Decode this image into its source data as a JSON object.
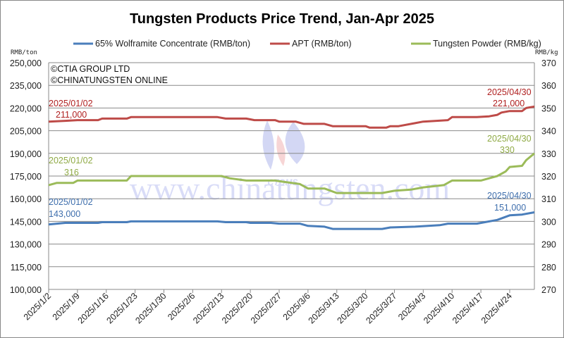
{
  "chart_data": {
    "type": "line",
    "title": "Tungsten Products Price Trend, Jan-Apr 2025",
    "copyright": [
      "©CTIA GROUP LTD",
      "©CHINATUNGSTEN ONLINE"
    ],
    "watermark": {
      "text": "www.chinatungsten.com",
      "logo": "CTOMS"
    },
    "grid": true,
    "legend_position": "top",
    "x_axis": {
      "type": "date",
      "range": [
        "2025-01-02",
        "2025-04-30"
      ],
      "tick_labels": [
        "2025/1/2",
        "2025/1/9",
        "2025/1/16",
        "2025/1/23",
        "2025/1/30",
        "2025/2/6",
        "2025/2/13",
        "2025/2/20",
        "2025/2/27",
        "2025/3/6",
        "2025/3/13",
        "2025/3/20",
        "2025/3/27",
        "2025/4/3",
        "2025/4/10",
        "2025/4/17",
        "2025/4/24"
      ]
    },
    "y_left": {
      "unit": "RMB/ton",
      "range": [
        100000,
        250000
      ],
      "ticks": [
        "100,000",
        "115,000",
        "130,000",
        "145,000",
        "160,000",
        "175,000",
        "190,000",
        "205,000",
        "220,000",
        "235,000",
        "250,000"
      ]
    },
    "y_right": {
      "unit": "RMB/kg",
      "range": [
        270,
        370
      ],
      "ticks": [
        "270",
        "280",
        "290",
        "300",
        "310",
        "320",
        "330",
        "340",
        "350",
        "360",
        "370"
      ]
    },
    "series": [
      {
        "name": "65% Wolframite Concentrate (RMB/ton)",
        "axis": "left",
        "color": "#4a7ebb",
        "points": [
          [
            "2025-01-02",
            143000
          ],
          [
            "2025-01-06",
            144000
          ],
          [
            "2025-01-14",
            144000
          ],
          [
            "2025-01-15",
            144500
          ],
          [
            "2025-01-21",
            144500
          ],
          [
            "2025-01-22",
            145000
          ],
          [
            "2025-02-12",
            145000
          ],
          [
            "2025-02-14",
            144500
          ],
          [
            "2025-02-19",
            144500
          ],
          [
            "2025-02-20",
            144000
          ],
          [
            "2025-02-25",
            144000
          ],
          [
            "2025-02-27",
            143500
          ],
          [
            "2025-03-04",
            143500
          ],
          [
            "2025-03-06",
            142000
          ],
          [
            "2025-03-10",
            141500
          ],
          [
            "2025-03-12",
            140000
          ],
          [
            "2025-03-24",
            140000
          ],
          [
            "2025-03-26",
            141000
          ],
          [
            "2025-04-01",
            141500
          ],
          [
            "2025-04-07",
            142500
          ],
          [
            "2025-04-09",
            143500
          ],
          [
            "2025-04-16",
            143500
          ],
          [
            "2025-04-18",
            144500
          ],
          [
            "2025-04-21",
            146000
          ],
          [
            "2025-04-24",
            149000
          ],
          [
            "2025-04-27",
            149500
          ],
          [
            "2025-04-30",
            151000
          ]
        ],
        "annotations": [
          {
            "date": "2025/01/02",
            "value": "143,000"
          },
          {
            "date": "2025/04/30",
            "value": "151,000"
          }
        ]
      },
      {
        "name": "APT (RMB/ton)",
        "axis": "left",
        "color": "#be4b48",
        "points": [
          [
            "2025-01-02",
            211000
          ],
          [
            "2025-01-06",
            211500
          ],
          [
            "2025-01-09",
            212000
          ],
          [
            "2025-01-14",
            212000
          ],
          [
            "2025-01-15",
            213000
          ],
          [
            "2025-01/21",
            213000
          ],
          [
            "2025-01-22",
            214000
          ],
          [
            "2025-02-12",
            214000
          ],
          [
            "2025-02-14",
            213000
          ],
          [
            "2025-02-19",
            213000
          ],
          [
            "2025-02-21",
            212000
          ],
          [
            "2025-02-26",
            212000
          ],
          [
            "2025-02-27",
            211000
          ],
          [
            "2025-03-03",
            211000
          ],
          [
            "2025-03-05",
            209500
          ],
          [
            "2025-03-10",
            209500
          ],
          [
            "2025-03-12",
            208000
          ],
          [
            "2025-03-20",
            208000
          ],
          [
            "2025-03-21",
            207000
          ],
          [
            "2025-03-25",
            207000
          ],
          [
            "2025-03-26",
            208000
          ],
          [
            "2025-03-28",
            208000
          ],
          [
            "2025-04-01",
            210000
          ],
          [
            "2025-04-03",
            211000
          ],
          [
            "2025-04-09",
            212000
          ],
          [
            "2025-04-10",
            214000
          ],
          [
            "2025-04-16",
            214000
          ],
          [
            "2025-04-19",
            214500
          ],
          [
            "2025-04-21",
            215500
          ],
          [
            "2025-04-22",
            217000
          ],
          [
            "2025-04-24",
            218000
          ],
          [
            "2025-04-27",
            218000
          ],
          [
            "2025-04-28",
            220000
          ],
          [
            "2025-04-30",
            221000
          ]
        ],
        "annotations": [
          {
            "date": "2025/01/02",
            "value": "211,000"
          },
          {
            "date": "2025/04/30",
            "value": "221,000"
          }
        ]
      },
      {
        "name": "Tungsten Powder (RMB/kg)",
        "axis": "right",
        "color": "#9bbb59",
        "points": [
          [
            "2025-01-02",
            316
          ],
          [
            "2025-01-04",
            317
          ],
          [
            "2025-01-08",
            317
          ],
          [
            "2025-01-09",
            318
          ],
          [
            "2025-01-21",
            318
          ],
          [
            "2025-01-22",
            320
          ],
          [
            "2025-02-13",
            320
          ],
          [
            "2025-02-15",
            319
          ],
          [
            "2025-02-19",
            318
          ],
          [
            "2025-02-26",
            318
          ],
          [
            "2025-02-28",
            317.5
          ],
          [
            "2025-03-04",
            316.5
          ],
          [
            "2025-03-06",
            314.5
          ],
          [
            "2025-03-10",
            314.5
          ],
          [
            "2025-03-13",
            312.5
          ],
          [
            "2025-03-24",
            312.5
          ],
          [
            "2025-03-27",
            313.5
          ],
          [
            "2025-03-31",
            314
          ],
          [
            "2025-04-03",
            315
          ],
          [
            "2025-04-08",
            316
          ],
          [
            "2025-04-10",
            318
          ],
          [
            "2025-04-17",
            318
          ],
          [
            "2025-04-19",
            319
          ],
          [
            "2025-04-21",
            320
          ],
          [
            "2025-04-23",
            322
          ],
          [
            "2025-04-24",
            324
          ],
          [
            "2025-04-27",
            324.5
          ],
          [
            "2025-04-28",
            327
          ],
          [
            "2025-04-30",
            330
          ]
        ],
        "annotations": [
          {
            "date": "2025/01/02",
            "value": "316"
          },
          {
            "date": "2025/04/30",
            "value": "330"
          }
        ]
      }
    ]
  }
}
